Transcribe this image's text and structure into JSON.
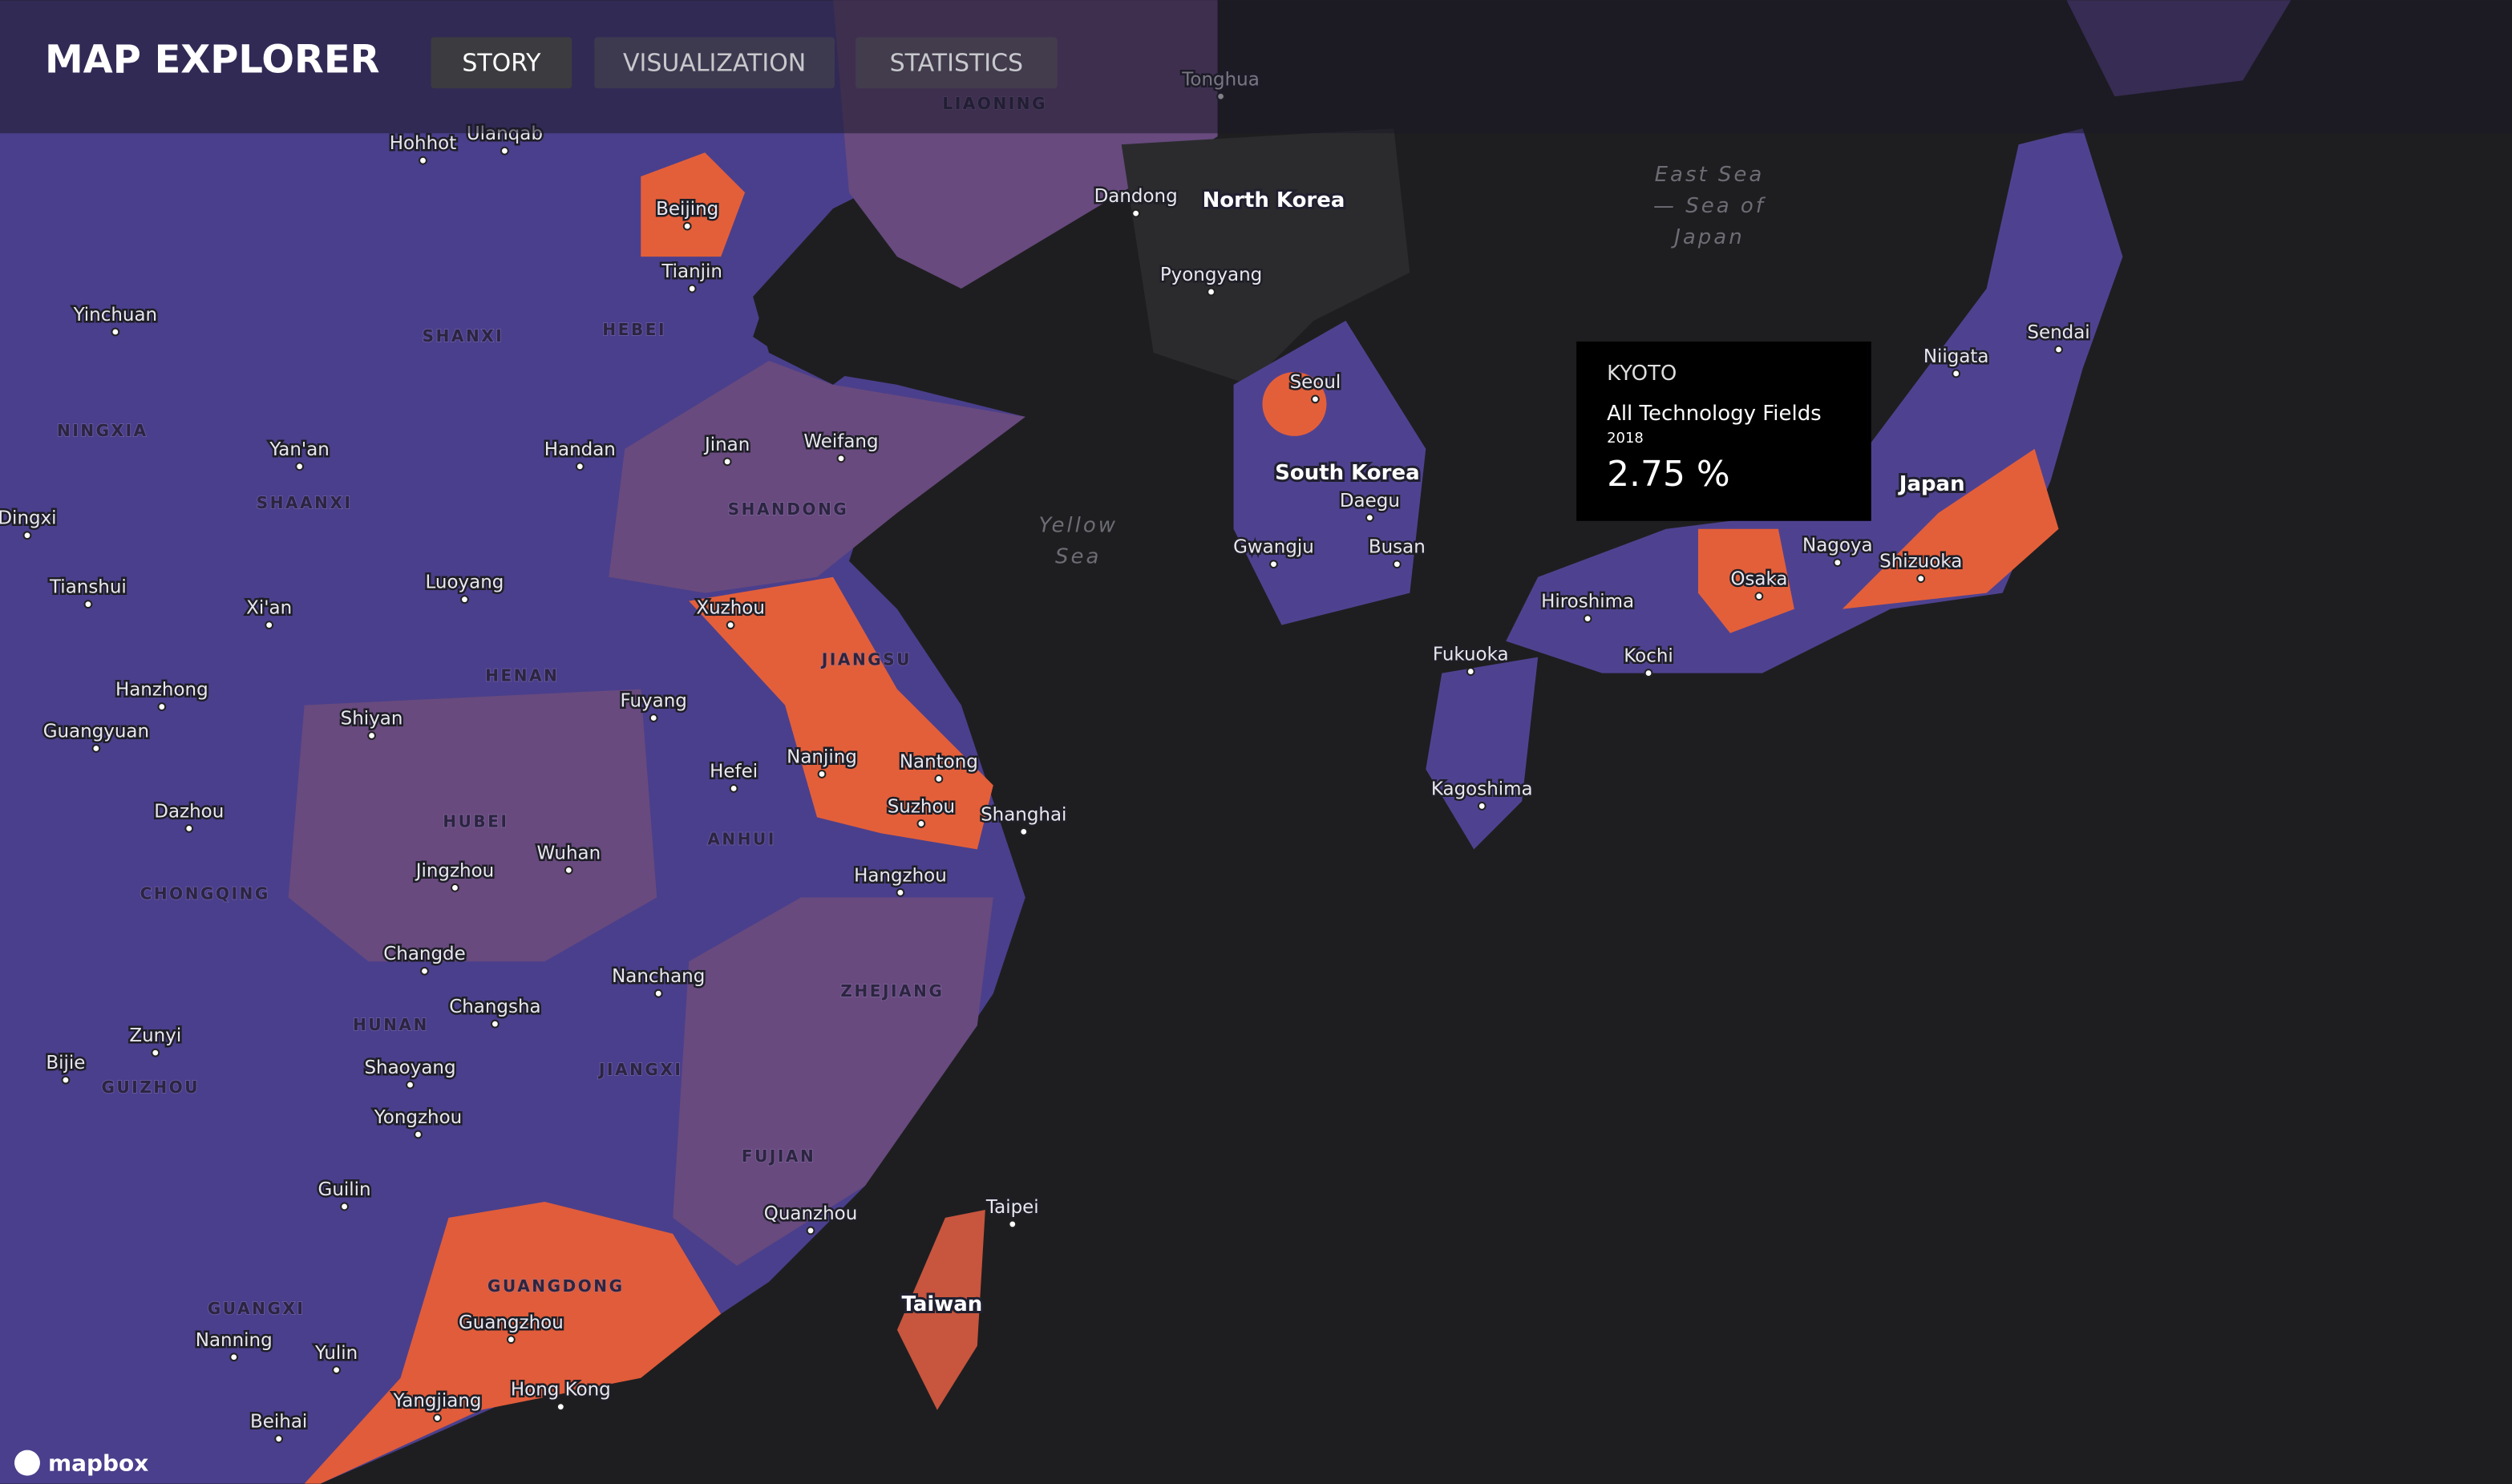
{
  "header": {
    "title": "MAP EXPLORER",
    "nav": [
      "STORY",
      "VISUALIZATION",
      "STATISTICS"
    ]
  },
  "tooltip": {
    "region": "KYOTO",
    "field": "All Technology Fields",
    "year": "2018",
    "value": "2.75 %"
  },
  "cities": [
    "Hohhot",
    "Ulanqab",
    "Beijing",
    "Tianjin",
    "Yinchuan",
    "Dandong",
    "Pyongyang",
    "Seoul",
    "Daegu",
    "Gwangju",
    "Busan",
    "Niigata",
    "Sendai",
    "Nagoya",
    "Shizuoka",
    "Osaka",
    "Hiroshima",
    "Fukuoka",
    "Kochi",
    "Kagoshima",
    "Yan'an",
    "Handan",
    "Jinan",
    "Weifang",
    "Dingxi",
    "Tianshui",
    "Xi'an",
    "Luoyang",
    "Xuzhou",
    "Hanzhong",
    "Guangyuan",
    "Shiyan",
    "Fuyang",
    "Hefei",
    "Nanjing",
    "Nantong",
    "Suzhou",
    "Shanghai",
    "Dazhou",
    "Wuhan",
    "Jingzhou",
    "Hangzhou",
    "Changde",
    "Nanchang",
    "Changsha",
    "Zunyi",
    "Bijie",
    "Shaoyang",
    "Yongzhou",
    "Guilin",
    "Taipei",
    "Quanzhou",
    "Guangzhou",
    "Nanning",
    "Yulin",
    "Yangjiang",
    "Hong Kong",
    "Beihai",
    "Tonghua"
  ],
  "provinces": [
    "LIAONING",
    "SHANXI",
    "HEBEI",
    "NINGXIA",
    "SHAANXI",
    "SHANDONG",
    "JIANGSU",
    "HENAN",
    "HUBEI",
    "ANHUI",
    "CHONGQING",
    "ZHEJIANG",
    "HUNAN",
    "JIANGXI",
    "GUIZHOU",
    "FUJIAN",
    "GUANGDONG",
    "GUANGXI"
  ],
  "countries": [
    "North Korea",
    "South Korea",
    "Japan",
    "Taiwan"
  ],
  "seas": [
    [
      "Yellow",
      "Sea"
    ],
    [
      "East Sea",
      "— Sea of",
      "Japan"
    ]
  ],
  "attribution": "mapbox"
}
